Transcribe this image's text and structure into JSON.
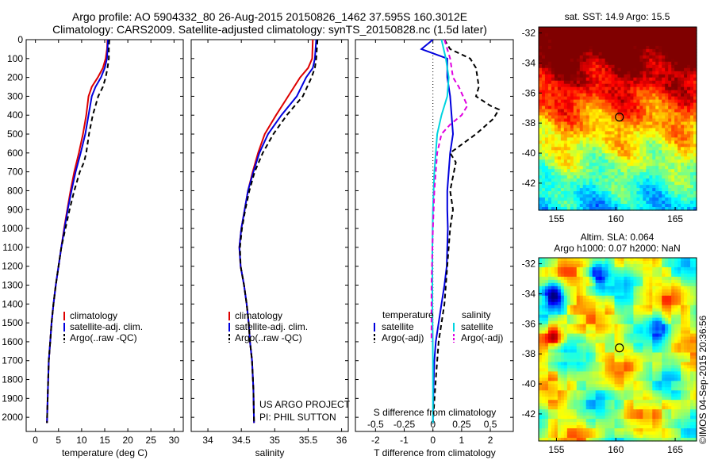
{
  "header": {
    "line1": "Argo profile: AO 5904332_80 26-Aug-2015 20150826_1462 37.595S 160.3012E",
    "line2": "Climatology: CARS2009. Satellite-adjusted climatology: synTS_20150828.nc (1.5d later)"
  },
  "footer_stamp": "©IMOS 04-Sep-2015 20:36:56",
  "colors": {
    "red": "#dd0000",
    "blue": "#0000dd",
    "black": "#000000",
    "cyan": "#00d4e0",
    "magenta": "#e000e0"
  },
  "chart_data": [
    {
      "type": "line",
      "xlabel": "temperature (deg C)",
      "xlim": [
        -2,
        32
      ],
      "xticks": [
        0,
        5,
        10,
        15,
        20,
        25,
        30
      ],
      "ylim": [
        2075,
        0
      ],
      "yticks": [
        0,
        100,
        200,
        300,
        400,
        500,
        600,
        700,
        800,
        900,
        1000,
        1100,
        1200,
        1300,
        1400,
        1500,
        1600,
        1700,
        1800,
        1900,
        2000
      ],
      "legend": [
        "climatology",
        "satellite-adj. clim.",
        "Argo(..raw -QC)"
      ],
      "legend_placement": "lower-left",
      "series": [
        {
          "name": "climatology",
          "color": "red",
          "dash": "solid",
          "x": [
            15.6,
            15.5,
            15.2,
            14.6,
            13.5,
            12.2,
            11.5,
            11.0,
            10.3,
            9.4,
            8.4,
            7.6,
            6.9,
            6.2,
            5.6,
            5.0,
            4.4,
            3.9,
            3.5,
            3.2,
            2.9,
            2.7,
            2.5
          ],
          "y": [
            0,
            50,
            100,
            150,
            200,
            250,
            300,
            400,
            500,
            600,
            700,
            800,
            900,
            1000,
            1100,
            1200,
            1300,
            1400,
            1500,
            1600,
            1700,
            1850,
            2030
          ]
        },
        {
          "name": "satellite-adj. clim.",
          "color": "blue",
          "dash": "solid",
          "x": [
            15.7,
            15.6,
            15.5,
            15.0,
            14.2,
            13.0,
            12.2,
            11.5,
            10.8,
            9.8,
            8.7,
            7.8,
            7.0,
            6.3,
            5.6,
            5.0,
            4.4,
            3.9,
            3.5,
            3.2,
            2.9,
            2.7,
            2.5
          ],
          "y": [
            0,
            50,
            100,
            150,
            200,
            250,
            300,
            400,
            500,
            600,
            700,
            800,
            900,
            1000,
            1100,
            1200,
            1300,
            1400,
            1500,
            1600,
            1700,
            1850,
            2030
          ]
        },
        {
          "name": "Argo(..raw -QC)",
          "color": "black",
          "dash": "dashed",
          "x": [
            16.0,
            15.9,
            15.9,
            15.6,
            15.2,
            14.6,
            13.6,
            13.0,
            12.4,
            11.6,
            11.0,
            10.5,
            9.6,
            8.4,
            7.4,
            6.5,
            5.6,
            5.0,
            4.4,
            3.9,
            3.5,
            3.2,
            2.9,
            2.7,
            2.5
          ],
          "y": [
            0,
            50,
            100,
            150,
            200,
            250,
            300,
            350,
            400,
            500,
            600,
            650,
            700,
            800,
            900,
            1000,
            1100,
            1200,
            1300,
            1400,
            1500,
            1600,
            1700,
            1850,
            2030
          ]
        }
      ]
    },
    {
      "type": "line",
      "xlabel": "salinity",
      "xlim": [
        33.75,
        36.1
      ],
      "xticks": [
        34,
        34.5,
        35,
        35.5,
        36
      ],
      "ylim": [
        2075,
        0
      ],
      "legend": [
        "climatology",
        "satellite-adj. clim.",
        "Argo(..raw -QC)"
      ],
      "legend_placement": "lower-left",
      "annotation": [
        "US ARGO PROJECT",
        "PI: PHIL SUTTON"
      ],
      "series": [
        {
          "name": "climatology",
          "color": "red",
          "dash": "solid",
          "x": [
            35.57,
            35.56,
            35.5,
            35.38,
            35.2,
            35.02,
            34.85,
            34.75,
            34.67,
            34.6,
            34.55,
            34.5,
            34.47,
            34.49,
            34.54,
            34.58,
            34.61,
            34.63,
            34.66,
            34.68,
            34.69
          ],
          "y": [
            0,
            100,
            150,
            200,
            300,
            400,
            500,
            600,
            700,
            800,
            900,
            1000,
            1100,
            1200,
            1300,
            1400,
            1500,
            1600,
            1700,
            1850,
            2030
          ]
        },
        {
          "name": "satellite-adj. clim.",
          "color": "blue",
          "dash": "solid",
          "x": [
            35.62,
            35.6,
            35.57,
            35.47,
            35.33,
            35.1,
            34.9,
            34.77,
            34.68,
            34.6,
            34.55,
            34.5,
            34.47,
            34.49,
            34.54,
            34.58,
            34.61,
            34.63,
            34.66,
            34.68,
            34.69
          ],
          "y": [
            0,
            100,
            150,
            200,
            300,
            400,
            500,
            600,
            700,
            800,
            900,
            1000,
            1100,
            1200,
            1300,
            1400,
            1500,
            1600,
            1700,
            1850,
            2030
          ]
        },
        {
          "name": "Argo(..raw -QC)",
          "color": "black",
          "dash": "dashed",
          "x": [
            35.64,
            35.62,
            35.6,
            35.55,
            35.42,
            35.18,
            34.98,
            34.82,
            34.7,
            34.62,
            34.56,
            34.51,
            34.48,
            34.49,
            34.54,
            34.58,
            34.61,
            34.63,
            34.66,
            34.68,
            34.69
          ],
          "y": [
            0,
            100,
            150,
            200,
            300,
            400,
            500,
            600,
            700,
            800,
            900,
            1000,
            1100,
            1200,
            1300,
            1400,
            1500,
            1600,
            1700,
            1850,
            2030
          ]
        }
      ]
    },
    {
      "type": "line",
      "xlabel": "T difference from climatology",
      "xlabel_top": "S difference from climatology",
      "xlim": [
        -2.7,
        2.8
      ],
      "xticks": [
        -2,
        -1,
        0,
        1,
        2
      ],
      "xticks_top": [
        "-0.5",
        "-0.25",
        "0",
        "0.25",
        "0.5"
      ],
      "xticks_top_pos": [
        -2,
        -1,
        0,
        1,
        2
      ],
      "ylim": [
        2075,
        0
      ],
      "legend_groups": [
        {
          "title": "temperature",
          "entries": [
            "satellite",
            "Argo(-adj)"
          ]
        },
        {
          "title": "salinity",
          "entries": [
            "satellite",
            "Argo(-adj)"
          ]
        }
      ],
      "series": [
        {
          "name": "satellite",
          "group": "temperature",
          "color": "blue",
          "dash": "solid",
          "x": [
            0.0,
            -0.4,
            0.5,
            0.5,
            0.6,
            0.65,
            0.7,
            0.6,
            0.55,
            0.5,
            0.5,
            0.52,
            0.5,
            0.48,
            0.4,
            0.3,
            0.2,
            0.1,
            0.05,
            0.02,
            0.0
          ],
          "y": [
            0,
            50,
            100,
            200,
            300,
            400,
            500,
            600,
            700,
            800,
            900,
            1000,
            1100,
            1200,
            1300,
            1400,
            1500,
            1600,
            1700,
            1850,
            2030
          ]
        },
        {
          "name": "Argo(-adj)",
          "group": "temperature",
          "color": "black",
          "dash": "dashed",
          "x": [
            0.4,
            0.6,
            1.3,
            1.5,
            1.6,
            1.5,
            2.0,
            2.3,
            2.1,
            1.5,
            0.6,
            0.8,
            0.6,
            0.7,
            0.6,
            0.5,
            0.4,
            0.2,
            0.1,
            0.0
          ],
          "y": [
            0,
            50,
            100,
            150,
            250,
            300,
            350,
            370,
            420,
            500,
            600,
            650,
            800,
            900,
            1000,
            1200,
            1400,
            1600,
            1800,
            2030
          ]
        },
        {
          "name": "satellite",
          "group": "salinity",
          "color": "cyan",
          "dash": "solid",
          "x": [
            0.3,
            0.45,
            0.55,
            0.5,
            0.3,
            0.15,
            0.05,
            0.0,
            -0.02,
            -0.02,
            0.0,
            0.0
          ],
          "y": [
            0,
            100,
            200,
            300,
            400,
            500,
            700,
            900,
            1100,
            1400,
            1700,
            2030
          ]
        },
        {
          "name": "Argo(-adj)",
          "group": "salinity",
          "color": "magenta",
          "dash": "dashed",
          "x": [
            0.4,
            0.6,
            0.7,
            0.9,
            1.2,
            1.0,
            0.6,
            0.3,
            0.15,
            0.05,
            0.0,
            -0.05,
            -0.05,
            -0.05
          ],
          "y": [
            0,
            100,
            200,
            250,
            350,
            400,
            450,
            500,
            600,
            800,
            1000,
            1300,
            1500,
            1600
          ]
        }
      ]
    },
    {
      "type": "heatmap",
      "title": "sat. SST: 14.9  Argo: 15.5",
      "xticks": [
        155,
        160,
        165
      ],
      "yticks": [
        -32,
        -34,
        -36,
        -38,
        -40,
        -42
      ],
      "xlim": [
        153.5,
        166.8
      ],
      "ylim": [
        -43.8,
        -31.6
      ],
      "marker": {
        "lon": 160.3,
        "lat": -37.6,
        "shape": "circle"
      },
      "colormap": "jet"
    },
    {
      "type": "heatmap",
      "title": "Altim. SLA: 0.064",
      "subtitle": "Argo h1000: 0.07 h2000: NaN",
      "xticks": [
        155,
        160,
        165
      ],
      "yticks": [
        -32,
        -34,
        -36,
        -38,
        -40,
        -42
      ],
      "xlim": [
        153.5,
        166.8
      ],
      "ylim": [
        -43.8,
        -31.6
      ],
      "marker": {
        "lon": 160.3,
        "lat": -37.6,
        "shape": "circle"
      },
      "colormap": "jet"
    }
  ]
}
